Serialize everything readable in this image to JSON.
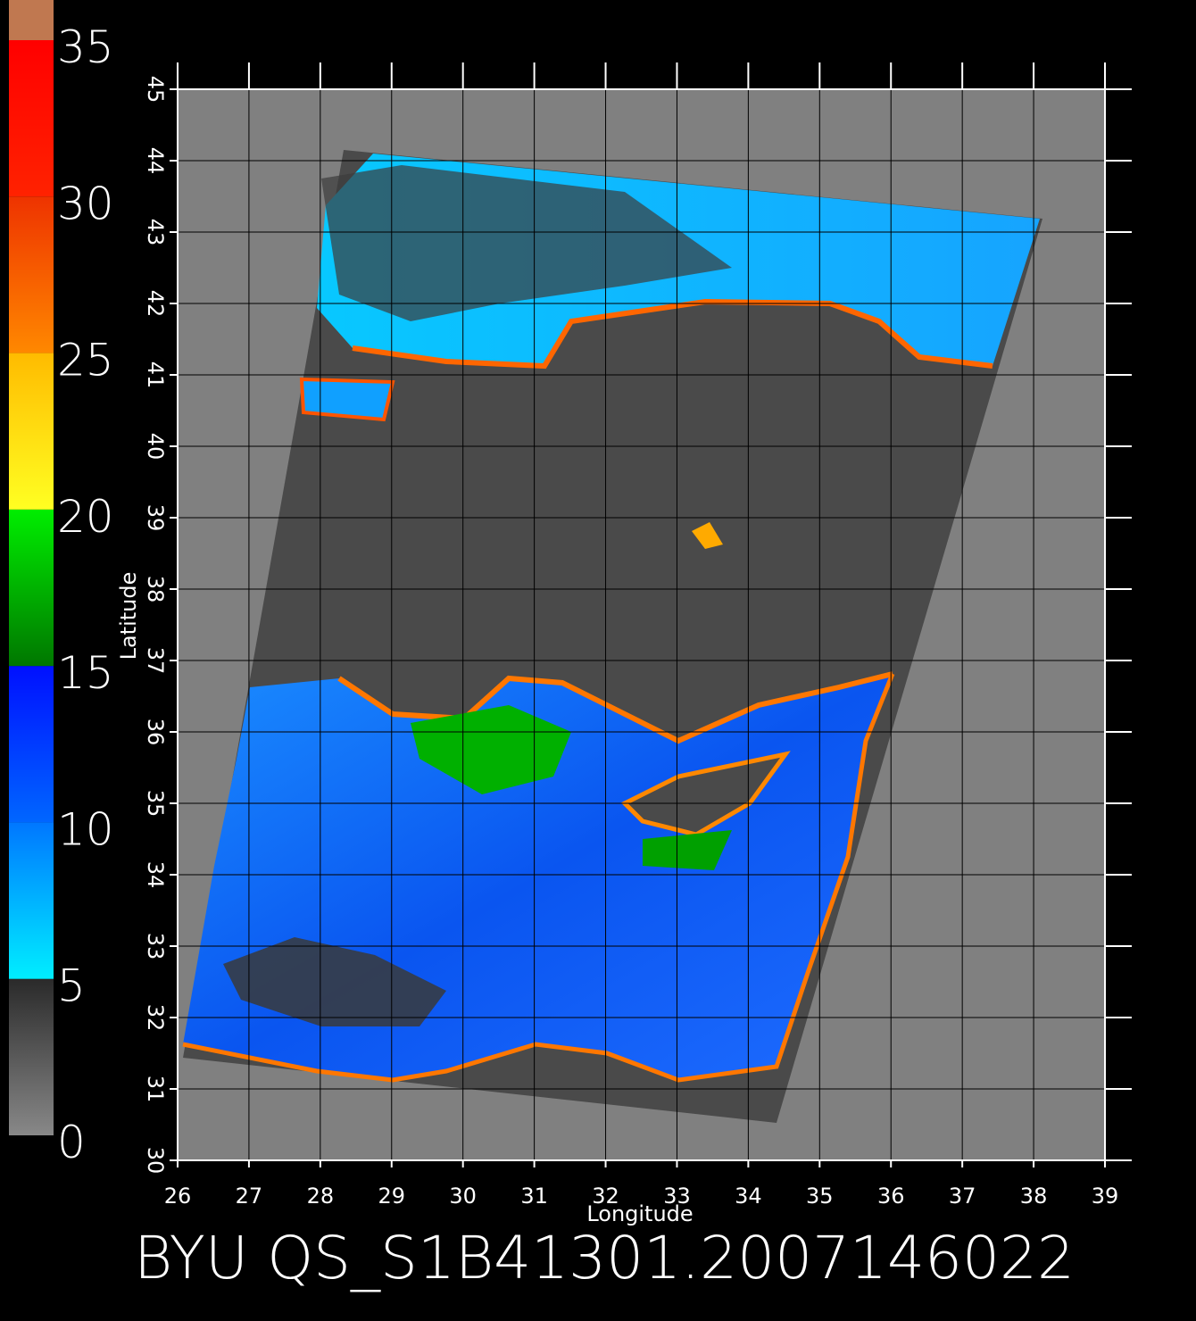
{
  "title": "BYU QS_S1B41301.2007146022",
  "map": {
    "x_label": "Longitude",
    "y_label": "Latitude",
    "xlim": [
      26,
      39
    ],
    "ylim": [
      30,
      45
    ],
    "xticks": [
      26,
      27,
      28,
      29,
      30,
      31,
      32,
      33,
      34,
      35,
      36,
      37,
      38,
      39
    ],
    "yticks": [
      30,
      31,
      32,
      33,
      34,
      35,
      36,
      37,
      38,
      39,
      40,
      41,
      42,
      43,
      44,
      45
    ]
  },
  "colorbar": {
    "lim": [
      0,
      35
    ],
    "ticks": [
      0,
      5,
      10,
      15,
      20,
      25,
      30,
      35
    ],
    "colors": [
      [
        "#888888",
        "#2a2a2a"
      ],
      [
        "#00eeff",
        "#0077ff"
      ],
      [
        "#0066ff",
        "#0010ff"
      ],
      [
        "#007700",
        "#00ee00"
      ],
      [
        "#ffff22",
        "#ffbb00"
      ],
      [
        "#ff8800",
        "#ee3300"
      ],
      [
        "#ff2200",
        "#ff0000"
      ]
    ]
  }
}
